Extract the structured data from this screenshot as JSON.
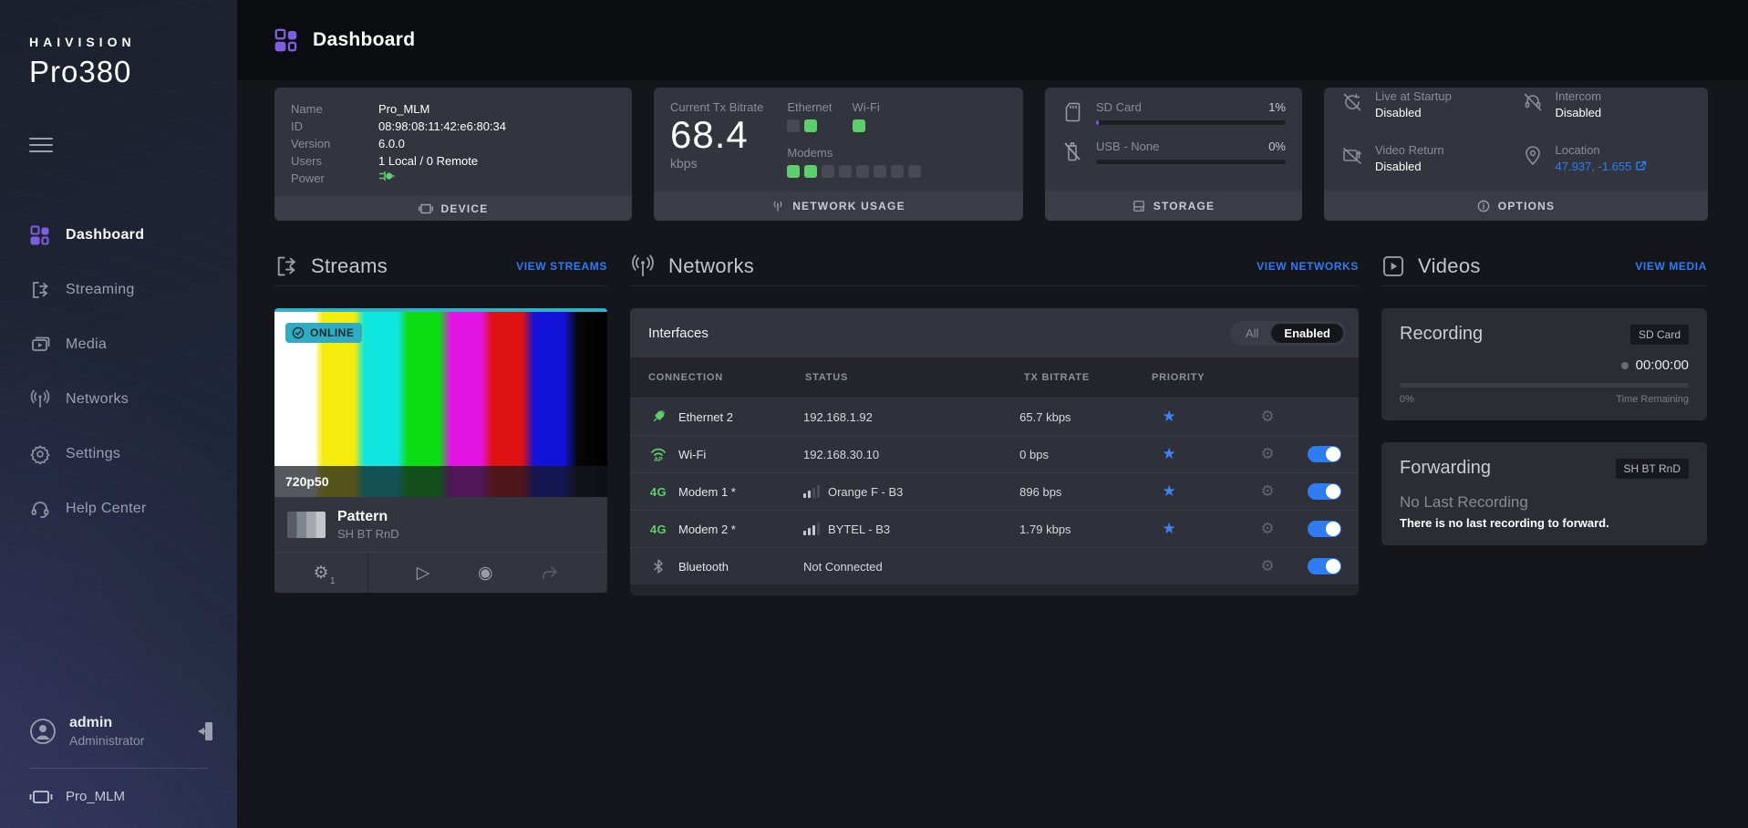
{
  "brand": {
    "name": "HAIVISION",
    "model": "Pro380"
  },
  "sidebar": {
    "items": [
      {
        "label": "Dashboard",
        "active": true
      },
      {
        "label": "Streaming"
      },
      {
        "label": "Media"
      },
      {
        "label": "Networks"
      },
      {
        "label": "Settings"
      },
      {
        "label": "Help Center"
      }
    ],
    "user": {
      "name": "admin",
      "role": "Administrator"
    },
    "device_name": "Pro_MLM"
  },
  "header": {
    "title": "Dashboard"
  },
  "cards": {
    "device": {
      "rows": [
        {
          "label": "Name",
          "value": "Pro_MLM"
        },
        {
          "label": "ID",
          "value": "08:98:08:11:42:e6:80:34"
        },
        {
          "label": "Version",
          "value": "6.0.0"
        },
        {
          "label": "Users",
          "value": "1 Local / 0 Remote"
        },
        {
          "label": "Power",
          "value": ""
        }
      ],
      "footer": "DEVICE"
    },
    "network_usage": {
      "bitrate_label": "Current Tx Bitrate",
      "bitrate_value": "68.4",
      "bitrate_unit": "kbps",
      "ethernet_label": "Ethernet",
      "wifi_label": "Wi-Fi",
      "modems_label": "Modems",
      "ethernet_squares": [
        0,
        1
      ],
      "wifi_squares": [
        1
      ],
      "modem_squares": [
        1,
        1,
        0,
        0,
        0,
        0,
        0,
        0
      ],
      "footer": "NETWORK USAGE"
    },
    "storage": {
      "items": [
        {
          "label": "SD Card",
          "percent": "1%",
          "fill_pct": 1.5
        },
        {
          "label": "USB - None",
          "percent": "0%",
          "fill_pct": 0
        }
      ],
      "footer": "STORAGE"
    },
    "options": {
      "items": [
        {
          "label": "Live at Startup",
          "value": "Disabled"
        },
        {
          "label": "Intercom",
          "value": "Disabled"
        },
        {
          "label": "Video Return",
          "value": "Disabled"
        },
        {
          "label": "Location",
          "value": "47.937, -1.655"
        }
      ],
      "footer": "OPTIONS"
    }
  },
  "streams": {
    "title": "Streams",
    "view_link": "VIEW STREAMS",
    "card": {
      "status": "ONLINE",
      "resolution": "720p50",
      "name": "Pattern",
      "subtitle": "SH BT RnD",
      "config_count": "1"
    }
  },
  "networks": {
    "title": "Networks",
    "view_link": "VIEW NETWORKS",
    "panel_title": "Interfaces",
    "filter": {
      "all": "All",
      "enabled": "Enabled"
    },
    "columns": [
      "CONNECTION",
      "STATUS",
      "TX BITRATE",
      "PRIORITY"
    ],
    "rows": [
      {
        "name": "Ethernet 2",
        "status": "192.168.1.92",
        "bitrate": "65.7 kbps",
        "signal": null,
        "priority": true,
        "toggle": null
      },
      {
        "name": "Wi-Fi",
        "status": "192.168.30.10",
        "bitrate": "0 bps",
        "signal": null,
        "priority": true,
        "toggle": true
      },
      {
        "name": "Modem 1 *",
        "status": "Orange F - B3",
        "bitrate": "896 bps",
        "signal": 2,
        "priority": true,
        "toggle": true
      },
      {
        "name": "Modem 2 *",
        "status": "BYTEL - B3",
        "bitrate": "1.79 kbps",
        "signal": 3,
        "priority": true,
        "toggle": true
      },
      {
        "name": "Bluetooth",
        "status": "Not Connected",
        "bitrate": "",
        "signal": null,
        "priority": false,
        "toggle": true
      }
    ]
  },
  "videos": {
    "title": "Videos",
    "view_link": "VIEW MEDIA",
    "recording": {
      "title": "Recording",
      "badge": "SD Card",
      "timer": "00:00:00",
      "percent": "0%",
      "remaining_label": "Time Remaining"
    },
    "forwarding": {
      "title": "Forwarding",
      "badge": "SH BT RnD",
      "status": "No Last Recording",
      "message": "There is no last recording to forward."
    }
  },
  "colors": {
    "accent_purple": "#7d5fe0",
    "green": "#5ece6d",
    "link_blue": "#2e7bf6",
    "star_blue": "#3f82f4",
    "toggle_blue": "#2e7bf2",
    "badge_teal": "#2fabc2",
    "progress_purple": "#7e5bf0"
  }
}
